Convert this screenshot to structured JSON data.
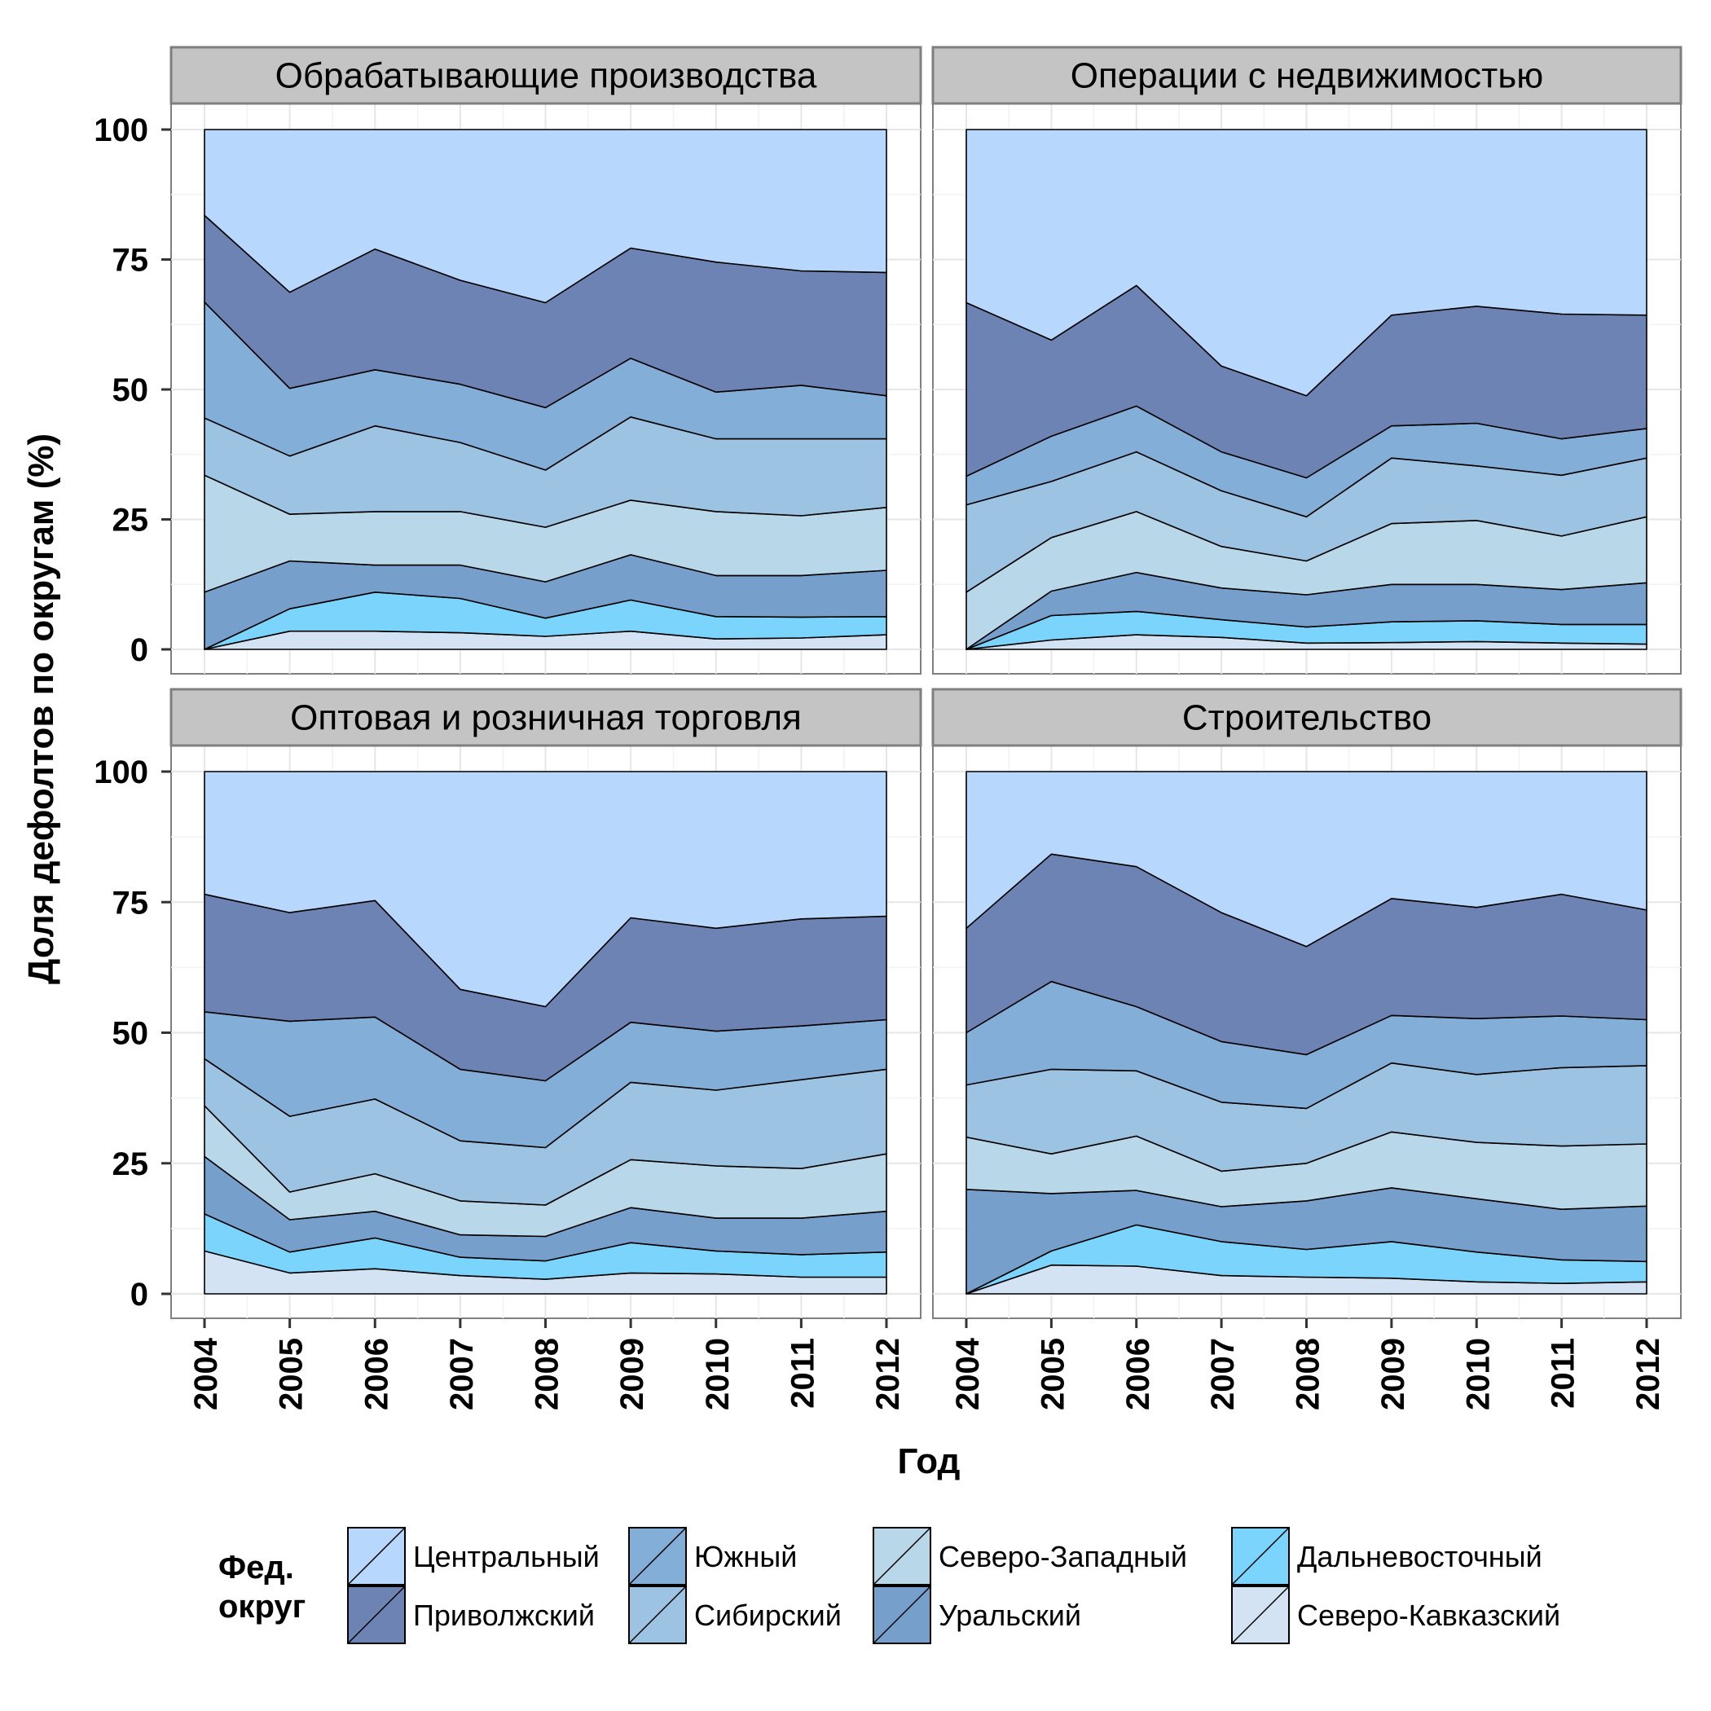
{
  "chart_data": {
    "type": "area",
    "stacked": true,
    "ylabel": "Доля дефолтов по округам (%)",
    "xlabel": "Год",
    "ylim": [
      0,
      100
    ],
    "yticks": [
      "0",
      "25",
      "50",
      "75",
      "100"
    ],
    "x": [
      "2004",
      "2005",
      "2006",
      "2007",
      "2008",
      "2009",
      "2010",
      "2011",
      "2012"
    ],
    "grid": true,
    "legend": {
      "title_lines": [
        "Фед.",
        "округ"
      ],
      "placement": "bottom",
      "items": [
        {
          "name": "Центральный",
          "color": "#b7d8fc"
        },
        {
          "name": "Приволжский",
          "color": "#6c83b3"
        },
        {
          "name": "Южный",
          "color": "#82aed7"
        },
        {
          "name": "Сибирский",
          "color": "#9cc3e1"
        },
        {
          "name": "Северо-Западный",
          "color": "#b8d8ea"
        },
        {
          "name": "Уральский",
          "color": "#779fcc"
        },
        {
          "name": "Дальневосточный",
          "color": "#7bd4fb"
        },
        {
          "name": "Северо-Кавказский",
          "color": "#d3e3f3"
        }
      ]
    },
    "stack_order_bottom_to_top": [
      "Северо-Кавказский",
      "Дальневосточный",
      "Уральский",
      "Северо-Западный",
      "Сибирский",
      "Южный",
      "Приволжский",
      "Центральный"
    ],
    "panels": [
      {
        "title": "Обрабатывающие производства",
        "cumulative_tops": {
          "Северо-Кавказский": [
            0,
            3.5,
            3.5,
            3.2,
            2.5,
            3.5,
            2,
            2.2,
            2.8
          ],
          "Дальневосточный": [
            0,
            7.8,
            11,
            9.8,
            6,
            9.5,
            6.3,
            6.2,
            6.3
          ],
          "Уральский": [
            11,
            17,
            16.2,
            16.2,
            13,
            18.2,
            14.2,
            14.2,
            15.2
          ],
          "Северо-Западный": [
            33.5,
            26,
            26.5,
            26.5,
            23.5,
            28.7,
            26.5,
            25.7,
            27.3
          ],
          "Сибирский": [
            44.5,
            37.2,
            43,
            39.8,
            34.5,
            44.7,
            40.5,
            40.5,
            40.5
          ],
          "Южный": [
            66.8,
            50.2,
            53.8,
            51,
            46.5,
            56,
            49.5,
            50.8,
            48.8
          ],
          "Приволжский": [
            83.5,
            68.7,
            77,
            71,
            66.7,
            77.2,
            74.5,
            72.8,
            72.5
          ],
          "Центральный": [
            100,
            100,
            100,
            100,
            100,
            100,
            100,
            100,
            100
          ]
        }
      },
      {
        "title": "Операции с недвижимостью",
        "cumulative_tops": {
          "Северо-Кавказский": [
            0,
            1.8,
            2.8,
            2.3,
            1.2,
            1.3,
            1.5,
            1.2,
            1
          ],
          "Дальневосточный": [
            0,
            6.5,
            7.3,
            5.7,
            4.3,
            5.3,
            5.5,
            4.8,
            4.8
          ],
          "Уральский": [
            0,
            11.2,
            14.8,
            11.8,
            10.5,
            12.5,
            12.5,
            11.5,
            12.8
          ],
          "Северо-Западный": [
            11,
            21.5,
            26.5,
            19.8,
            17,
            24.2,
            24.8,
            21.8,
            25.5
          ],
          "Сибирский": [
            27.8,
            32.3,
            38,
            30.5,
            25.5,
            36.8,
            35.3,
            33.5,
            36.8
          ],
          "Южный": [
            33.3,
            41,
            46.8,
            38,
            33,
            43,
            43.5,
            40.5,
            42.5
          ],
          "Приволжский": [
            66.7,
            59.5,
            70,
            54.5,
            48.8,
            64.3,
            66,
            64.5,
            64.3
          ],
          "Центральный": [
            100,
            100,
            100,
            100,
            100,
            100,
            100,
            100,
            100
          ]
        }
      },
      {
        "title": "Оптовая и розничная торговля",
        "cumulative_tops": {
          "Северо-Кавказский": [
            8.2,
            4,
            4.8,
            3.5,
            2.8,
            4,
            3.8,
            3.2,
            3.2
          ],
          "Дальневосточный": [
            15.3,
            8,
            10.7,
            7,
            6.3,
            9.8,
            8.2,
            7.5,
            8
          ],
          "Уральский": [
            26.3,
            14.2,
            15.8,
            11.3,
            11,
            16.5,
            14.5,
            14.5,
            15.8
          ],
          "Северо-Западный": [
            36,
            19.5,
            23,
            17.8,
            17,
            25.7,
            24.5,
            24,
            26.8
          ],
          "Сибирский": [
            45,
            34,
            37.3,
            29.3,
            28,
            40.5,
            39,
            41,
            43
          ],
          "Южный": [
            54,
            52.2,
            53,
            43,
            40.8,
            52,
            50.3,
            51.3,
            52.5
          ],
          "Приволжский": [
            76.5,
            73,
            75.3,
            58.3,
            55,
            72,
            70,
            71.8,
            72.3
          ],
          "Центральный": [
            100,
            100,
            100,
            100,
            100,
            100,
            100,
            100,
            100
          ]
        }
      },
      {
        "title": "Строительство",
        "cumulative_tops": {
          "Северо-Кавказский": [
            0,
            5.5,
            5.3,
            3.5,
            3.2,
            3,
            2.3,
            2,
            2.3
          ],
          "Дальневосточный": [
            0,
            8.2,
            13.2,
            10,
            8.5,
            10,
            8,
            6.5,
            6.2
          ],
          "Уральский": [
            20,
            19.2,
            19.8,
            16.7,
            17.8,
            20.3,
            18.2,
            16.2,
            16.8
          ],
          "Северо-Западный": [
            30,
            26.8,
            30.2,
            23.5,
            25,
            31,
            29,
            28.3,
            28.7
          ],
          "Сибирский": [
            40,
            43,
            42.7,
            36.7,
            35.5,
            44.2,
            42,
            43.3,
            43.7
          ],
          "Южный": [
            50,
            59.8,
            55,
            48.3,
            45.8,
            53.3,
            52.7,
            53.2,
            52.5
          ],
          "Приволжский": [
            70,
            84.2,
            81.8,
            73,
            66.5,
            75.7,
            74,
            76.5,
            73.5
          ],
          "Центральный": [
            100,
            100,
            100,
            100,
            100,
            100,
            100,
            100,
            100
          ]
        }
      }
    ]
  }
}
